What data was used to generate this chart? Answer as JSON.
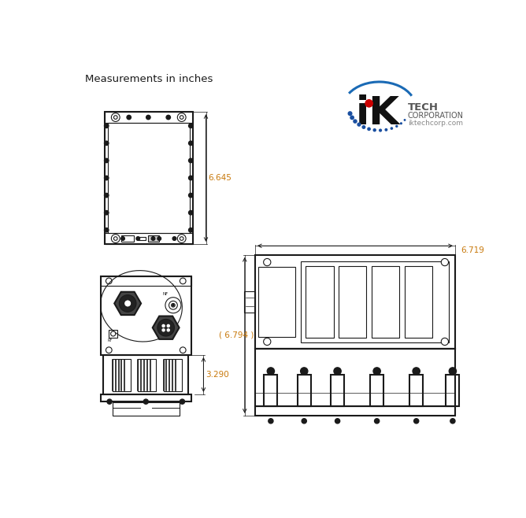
{
  "bg_color": "#ffffff",
  "line_color": "#1a1a1a",
  "dim_color": "#c8780a",
  "title_text": "Measurements in inches",
  "dim_6645": "6.645",
  "dim_3290": "3.290",
  "dim_6794": "( 6.794 )",
  "dim_6719": "6.719",
  "logo_dot_color": "#1a4fa0",
  "logo_red_dot": "#cc0000",
  "logo_arc_color": "#1a6ab5"
}
